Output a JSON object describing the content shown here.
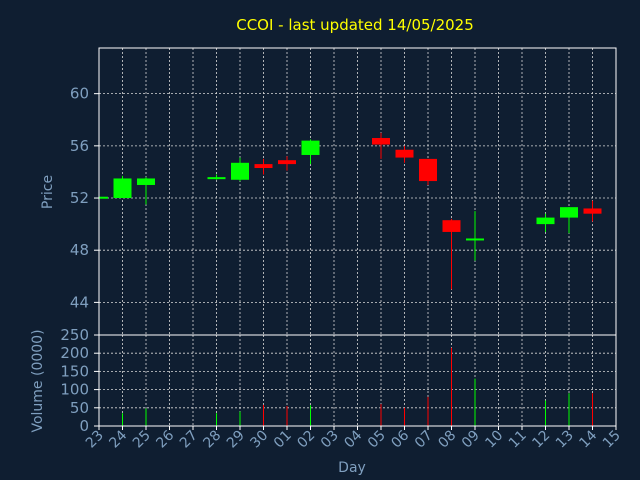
{
  "chart_data": {
    "type": "candlestick",
    "title": "CCOI - last updated 14/05/2025",
    "xlabel": "Day",
    "price_panel": {
      "ylabel": "Price",
      "ylim": [
        41.5,
        63.5
      ],
      "yticks": [
        44,
        48,
        52,
        56,
        60
      ],
      "grid": true
    },
    "volume_panel": {
      "ylabel": "Volume (0000)",
      "ylim": [
        0,
        250
      ],
      "yticks": [
        0,
        50,
        100,
        150,
        200,
        250
      ],
      "grid": true
    },
    "x_tick_labels": [
      "23",
      "24",
      "25",
      "26",
      "27",
      "28",
      "29",
      "30",
      "01",
      "02",
      "03",
      "04",
      "05",
      "06",
      "07",
      "08",
      "09",
      "10",
      "11",
      "12",
      "13",
      "14",
      "15"
    ],
    "candles": [
      {
        "day": "23",
        "open": 52.1,
        "high": 52.3,
        "low": 52.0,
        "close": 52.1,
        "volume": 0
      },
      {
        "day": "24",
        "open": 52.0,
        "high": 53.7,
        "low": 52.0,
        "close": 53.5,
        "volume": 35
      },
      {
        "day": "25",
        "open": 53.0,
        "high": 53.6,
        "low": 51.5,
        "close": 53.5,
        "volume": 48
      },
      {
        "day": "28",
        "open": 53.5,
        "high": 53.8,
        "low": 53.4,
        "close": 53.6,
        "volume": 35
      },
      {
        "day": "29",
        "open": 53.4,
        "high": 55.1,
        "low": 53.3,
        "close": 54.7,
        "volume": 40
      },
      {
        "day": "30",
        "open": 54.6,
        "high": 55.0,
        "low": 53.8,
        "close": 54.3,
        "volume": 58
      },
      {
        "day": "01",
        "open": 54.9,
        "high": 55.2,
        "low": 54.1,
        "close": 54.6,
        "volume": 55
      },
      {
        "day": "02",
        "open": 55.3,
        "high": 56.5,
        "low": 54.6,
        "close": 56.4,
        "volume": 57
      },
      {
        "day": "05",
        "open": 56.6,
        "high": 57.0,
        "low": 55.0,
        "close": 56.1,
        "volume": 60
      },
      {
        "day": "06",
        "open": 55.7,
        "high": 56.0,
        "low": 54.7,
        "close": 55.1,
        "volume": 50
      },
      {
        "day": "07",
        "open": 55.0,
        "high": 55.0,
        "low": 53.0,
        "close": 53.3,
        "volume": 80
      },
      {
        "day": "08",
        "open": 50.3,
        "high": 50.4,
        "low": 45.0,
        "close": 49.4,
        "volume": 215
      },
      {
        "day": "09",
        "open": 48.8,
        "high": 51.0,
        "low": 47.2,
        "close": 48.9,
        "volume": 130
      },
      {
        "day": "12",
        "open": 50.0,
        "high": 50.8,
        "low": 49.4,
        "close": 50.5,
        "volume": 70
      },
      {
        "day": "13",
        "open": 50.5,
        "high": 51.3,
        "low": 49.3,
        "close": 51.3,
        "volume": 90
      },
      {
        "day": "14",
        "open": 51.2,
        "high": 51.8,
        "low": 50.2,
        "close": 50.8,
        "volume": 90
      }
    ],
    "colors": {
      "background": "#0f1e31",
      "title": "#ffff00",
      "axis_text": "#7f9fbf",
      "frame": "#ffffff",
      "up": "#00ff00",
      "down": "#ff0000",
      "grid": "#d9d9d9"
    }
  }
}
